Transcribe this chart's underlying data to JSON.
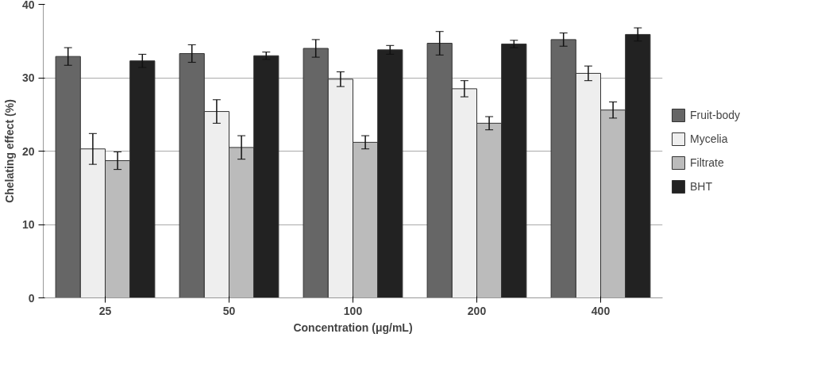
{
  "chart_data": {
    "type": "bar",
    "xlabel": "Concentration (μg/mL)",
    "ylabel": "Chelating effect (%)",
    "categories": [
      "25",
      "50",
      "100",
      "200",
      "400"
    ],
    "series": [
      {
        "name": "Fruit-body",
        "color": "#666666",
        "values": [
          32.9,
          33.3,
          34.0,
          34.7,
          35.2
        ],
        "errors": [
          1.2,
          1.2,
          1.2,
          1.6,
          0.9
        ]
      },
      {
        "name": "Mycelia",
        "color": "#eeeeee",
        "values": [
          20.3,
          25.4,
          29.8,
          28.5,
          30.6
        ],
        "errors": [
          2.1,
          1.6,
          1.0,
          1.1,
          1.0
        ]
      },
      {
        "name": "Filtrate",
        "color": "#bbbbbb",
        "values": [
          18.7,
          20.5,
          21.2,
          23.8,
          25.6
        ],
        "errors": [
          1.2,
          1.6,
          0.9,
          0.9,
          1.1
        ]
      },
      {
        "name": "BHT",
        "color": "#222222",
        "values": [
          32.3,
          33.0,
          33.8,
          34.6,
          35.9
        ],
        "errors": [
          0.9,
          0.5,
          0.6,
          0.5,
          0.9
        ]
      }
    ],
    "ylim": [
      0,
      40
    ],
    "yticks": [
      0,
      10,
      20,
      30,
      40
    ],
    "grid": "y",
    "legend": "right"
  }
}
